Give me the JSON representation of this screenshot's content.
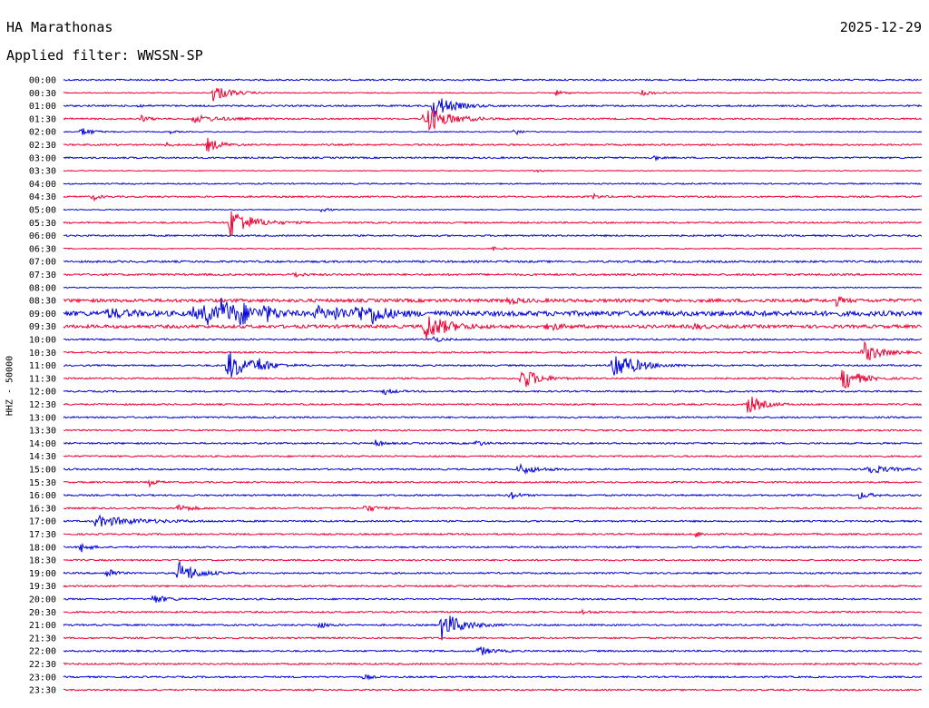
{
  "header": {
    "station": "HA Marathonas",
    "date": "2025-12-29",
    "filter": "Applied filter: WWSSN-SP"
  },
  "axis": {
    "ylabel": "HHZ - 50000"
  },
  "colors": {
    "blue": "#0000dd",
    "red": "#ee0033"
  },
  "times": [
    "00:00",
    "00:30",
    "01:00",
    "01:30",
    "02:00",
    "02:30",
    "03:00",
    "03:30",
    "04:00",
    "04:30",
    "05:00",
    "05:30",
    "06:00",
    "06:30",
    "07:00",
    "07:30",
    "08:00",
    "08:30",
    "09:00",
    "09:30",
    "10:00",
    "10:30",
    "11:00",
    "11:30",
    "12:00",
    "12:30",
    "13:00",
    "13:30",
    "14:00",
    "14:30",
    "15:00",
    "15:30",
    "16:00",
    "16:30",
    "17:00",
    "17:30",
    "18:00",
    "18:30",
    "19:00",
    "19:30",
    "20:00",
    "20:30",
    "21:00",
    "21:30",
    "22:00",
    "22:30",
    "23:00",
    "23:30"
  ],
  "chart_data": {
    "type": "line",
    "title": "HA Marathonas",
    "ylabel": "HHZ - 50000",
    "row_minutes": 30,
    "minutes_range": [
      0,
      30
    ],
    "noise": [
      1,
      0.6,
      1,
      1,
      0.6,
      1,
      1,
      0.5,
      0.8,
      1,
      0.6,
      1,
      1,
      0.6,
      1.2,
      1.2,
      0.6,
      2,
      3,
      2,
      1,
      1,
      1,
      1,
      1,
      1,
      1,
      1,
      1,
      1,
      1,
      1,
      1,
      1,
      1,
      1,
      1,
      1,
      1,
      1,
      1,
      1,
      1,
      1,
      1,
      1,
      1,
      1
    ],
    "events": [
      {
        "row": 1,
        "t": 5.2,
        "amp": 10,
        "dur": 1.2
      },
      {
        "row": 1,
        "t": 17.2,
        "amp": 3,
        "dur": 0.6
      },
      {
        "row": 1,
        "t": 20.2,
        "amp": 3,
        "dur": 0.8
      },
      {
        "row": 2,
        "t": 12.9,
        "amp": 14,
        "dur": 1.3
      },
      {
        "row": 2,
        "t": 2.6,
        "amp": 2,
        "dur": 0.4
      },
      {
        "row": 3,
        "t": 2.7,
        "amp": 4,
        "dur": 0.5
      },
      {
        "row": 3,
        "t": 4.5,
        "amp": 4,
        "dur": 1.8
      },
      {
        "row": 3,
        "t": 12.6,
        "amp": 16,
        "dur": 1.6
      },
      {
        "row": 4,
        "t": 0.6,
        "amp": 5,
        "dur": 0.8
      },
      {
        "row": 4,
        "t": 3.7,
        "amp": 2,
        "dur": 0.4
      },
      {
        "row": 4,
        "t": 15.7,
        "amp": 6,
        "dur": 0.4
      },
      {
        "row": 5,
        "t": 3.6,
        "amp": 2,
        "dur": 0.4
      },
      {
        "row": 5,
        "t": 5.0,
        "amp": 8,
        "dur": 0.9
      },
      {
        "row": 6,
        "t": 20.6,
        "amp": 4,
        "dur": 0.3
      },
      {
        "row": 7,
        "t": 16.5,
        "amp": 2,
        "dur": 0.5
      },
      {
        "row": 9,
        "t": 1.0,
        "amp": 5,
        "dur": 0.4
      },
      {
        "row": 9,
        "t": 18.5,
        "amp": 3,
        "dur": 0.5
      },
      {
        "row": 10,
        "t": 9.0,
        "amp": 2,
        "dur": 0.6
      },
      {
        "row": 11,
        "t": 5.8,
        "amp": 18,
        "dur": 1.4
      },
      {
        "row": 13,
        "t": 15.0,
        "amp": 2,
        "dur": 0.6
      },
      {
        "row": 15,
        "t": 8.0,
        "amp": 3,
        "dur": 0.6
      },
      {
        "row": 17,
        "t": 15.5,
        "amp": 3,
        "dur": 1.0
      },
      {
        "row": 17,
        "t": 27.0,
        "amp": 5,
        "dur": 0.5
      },
      {
        "row": 18,
        "t": 1.5,
        "amp": 5,
        "dur": 1.5
      },
      {
        "row": 18,
        "t": 4.5,
        "amp": 6,
        "dur": 0.8
      },
      {
        "row": 18,
        "t": 4.9,
        "amp": 12,
        "dur": 1.0
      },
      {
        "row": 18,
        "t": 5.5,
        "amp": 14,
        "dur": 1.2
      },
      {
        "row": 18,
        "t": 6.1,
        "amp": 10,
        "dur": 1.0
      },
      {
        "row": 18,
        "t": 7.0,
        "amp": 8,
        "dur": 0.8
      },
      {
        "row": 18,
        "t": 8.8,
        "amp": 8,
        "dur": 1.0
      },
      {
        "row": 18,
        "t": 9.5,
        "amp": 6,
        "dur": 0.8
      },
      {
        "row": 18,
        "t": 10.2,
        "amp": 10,
        "dur": 0.8
      },
      {
        "row": 18,
        "t": 10.7,
        "amp": 10,
        "dur": 1.2
      },
      {
        "row": 19,
        "t": 12.6,
        "amp": 16,
        "dur": 1.5
      },
      {
        "row": 19,
        "t": 16.9,
        "amp": 5,
        "dur": 0.8
      },
      {
        "row": 19,
        "t": 22.0,
        "amp": 3,
        "dur": 0.6
      },
      {
        "row": 20,
        "t": 12.9,
        "amp": 4,
        "dur": 0.5
      },
      {
        "row": 21,
        "t": 27.9,
        "amp": 13,
        "dur": 1.2
      },
      {
        "row": 22,
        "t": 5.7,
        "amp": 18,
        "dur": 1.5
      },
      {
        "row": 22,
        "t": 6.8,
        "amp": 7,
        "dur": 0.6
      },
      {
        "row": 22,
        "t": 19.2,
        "amp": 18,
        "dur": 1.5
      },
      {
        "row": 23,
        "t": 16.0,
        "amp": 14,
        "dur": 1.1
      },
      {
        "row": 23,
        "t": 27.2,
        "amp": 15,
        "dur": 1.1
      },
      {
        "row": 24,
        "t": 11.2,
        "amp": 4,
        "dur": 0.6
      },
      {
        "row": 25,
        "t": 23.9,
        "amp": 11,
        "dur": 1.0
      },
      {
        "row": 28,
        "t": 10.9,
        "amp": 4,
        "dur": 0.5
      },
      {
        "row": 28,
        "t": 14.4,
        "amp": 4,
        "dur": 0.5
      },
      {
        "row": 30,
        "t": 15.9,
        "amp": 6,
        "dur": 1.2
      },
      {
        "row": 30,
        "t": 28.0,
        "amp": 6,
        "dur": 1.4
      },
      {
        "row": 31,
        "t": 3.0,
        "amp": 4,
        "dur": 0.5
      },
      {
        "row": 32,
        "t": 15.6,
        "amp": 6,
        "dur": 0.5
      },
      {
        "row": 32,
        "t": 27.8,
        "amp": 4,
        "dur": 0.8
      },
      {
        "row": 33,
        "t": 4.0,
        "amp": 5,
        "dur": 0.8
      },
      {
        "row": 33,
        "t": 10.5,
        "amp": 5,
        "dur": 0.8
      },
      {
        "row": 34,
        "t": 1.1,
        "amp": 6,
        "dur": 3.0
      },
      {
        "row": 35,
        "t": 22.1,
        "amp": 4,
        "dur": 0.4
      },
      {
        "row": 36,
        "t": 0.6,
        "amp": 7,
        "dur": 0.5
      },
      {
        "row": 38,
        "t": 1.5,
        "amp": 8,
        "dur": 0.5
      },
      {
        "row": 38,
        "t": 4.0,
        "amp": 14,
        "dur": 1.2
      },
      {
        "row": 40,
        "t": 3.1,
        "amp": 5,
        "dur": 1.0
      },
      {
        "row": 41,
        "t": 18.1,
        "amp": 3,
        "dur": 0.5
      },
      {
        "row": 42,
        "t": 8.9,
        "amp": 4,
        "dur": 0.6
      },
      {
        "row": 42,
        "t": 13.2,
        "amp": 17,
        "dur": 1.3
      },
      {
        "row": 44,
        "t": 14.5,
        "amp": 6,
        "dur": 0.8
      },
      {
        "row": 46,
        "t": 10.5,
        "amp": 4,
        "dur": 0.4
      }
    ]
  }
}
